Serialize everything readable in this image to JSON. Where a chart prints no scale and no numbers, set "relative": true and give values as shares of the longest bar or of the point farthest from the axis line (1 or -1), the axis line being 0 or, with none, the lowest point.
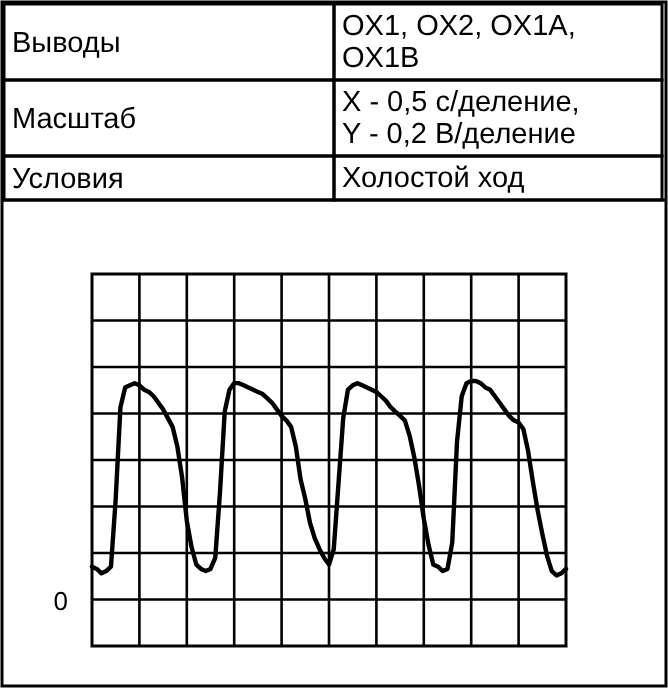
{
  "chart_data": {
    "type": "line",
    "annotations": [
      "Выводы",
      "OX1, OX2, OX1A, OX1B",
      "Масштаб",
      "X - 0,5 с/деление, Y - 0,2 В/деление",
      "Условия",
      "Холостой ход",
      "0"
    ],
    "relative": true,
    "grid": true,
    "marker": "none",
    "line_style": "solid",
    "categories": [
      null,
      null,
      null,
      null,
      null,
      null,
      null,
      null,
      null,
      null,
      null,
      null,
      null,
      null,
      null,
      null,
      null,
      null,
      null,
      null,
      null,
      null,
      null,
      null,
      null,
      null,
      null,
      null,
      null,
      null,
      null,
      null,
      null,
      null,
      null,
      null,
      null,
      null,
      null,
      null,
      null,
      null,
      null,
      null,
      null,
      null,
      null,
      null,
      null,
      null,
      null,
      null,
      null,
      null,
      null,
      null,
      null,
      null,
      null,
      null,
      null,
      null,
      null,
      null,
      null,
      null,
      null,
      null,
      null,
      null,
      null,
      null,
      null,
      null,
      null,
      null,
      null,
      null,
      null,
      null,
      null,
      null,
      null,
      null,
      null,
      null,
      null,
      null,
      null,
      null,
      null,
      null,
      null,
      null,
      null,
      null,
      null,
      null,
      null,
      null,
      null
    ],
    "series": [
      {
        "color": "#000000",
        "values": [
          0.15,
          0.14,
          0.12,
          0.13,
          0.15,
          0.46,
          0.88,
          0.97,
          0.98,
          0.99,
          0.98,
          0.96,
          0.95,
          0.93,
          0.9,
          0.87,
          0.83,
          0.79,
          0.7,
          0.56,
          0.36,
          0.24,
          0.16,
          0.14,
          0.13,
          0.14,
          0.19,
          0.49,
          0.86,
          0.96,
          0.99,
          0.99,
          0.98,
          0.97,
          0.96,
          0.95,
          0.94,
          0.92,
          0.9,
          0.87,
          0.84,
          0.82,
          0.79,
          0.7,
          0.55,
          0.46,
          0.35,
          0.28,
          0.23,
          0.19,
          0.16,
          0.23,
          0.53,
          0.83,
          0.96,
          0.98,
          0.99,
          0.98,
          0.97,
          0.96,
          0.95,
          0.93,
          0.91,
          0.88,
          0.86,
          0.84,
          0.82,
          0.75,
          0.65,
          0.52,
          0.37,
          0.25,
          0.16,
          0.15,
          0.13,
          0.14,
          0.26,
          0.72,
          0.93,
          0.99,
          1,
          1,
          0.99,
          0.97,
          0.96,
          0.93,
          0.9,
          0.87,
          0.84,
          0.82,
          0.81,
          0.78,
          0.68,
          0.54,
          0.41,
          0.3,
          0.2,
          0.13,
          0.11,
          0.12,
          0.14
        ]
      }
    ]
  }
}
